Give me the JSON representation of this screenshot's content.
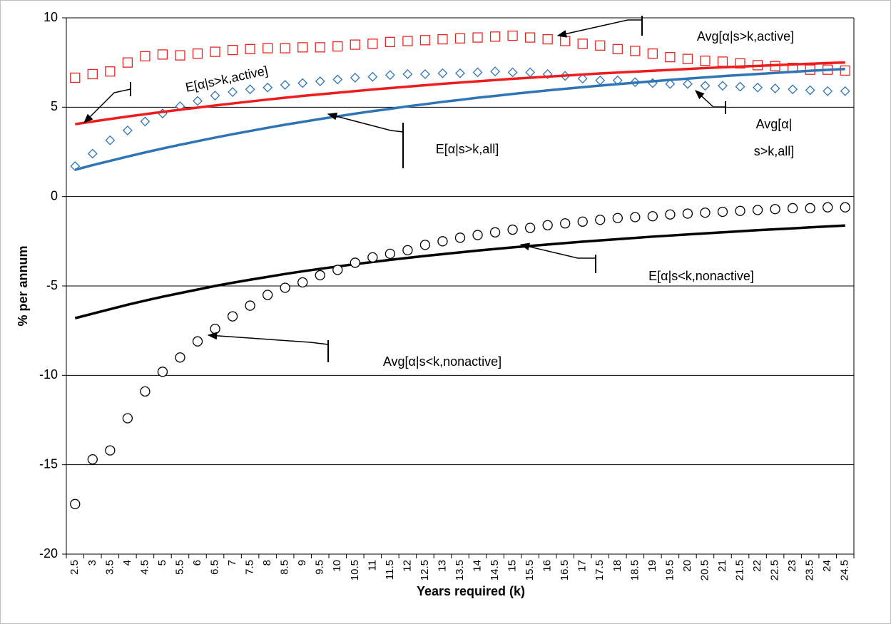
{
  "chart_data": {
    "type": "line",
    "y_label": "% per annum",
    "x_label": "Years required (k)",
    "categories": [
      "2.5",
      "3",
      "3.5",
      "4",
      "4.5",
      "5",
      "5.5",
      "6",
      "6.5",
      "7",
      "7.5",
      "8",
      "8.5",
      "9",
      "9.5",
      "10",
      "10.5",
      "11",
      "11.5",
      "12",
      "12.5",
      "13",
      "13.5",
      "14",
      "14.5",
      "15",
      "15.5",
      "16",
      "16.5",
      "17",
      "17.5",
      "18",
      "18.5",
      "19",
      "19.5",
      "20",
      "20.5",
      "21",
      "21.5",
      "22",
      "22.5",
      "23",
      "23.5",
      "24",
      "24.5"
    ],
    "ylim": [
      -20,
      10
    ],
    "yticks": [
      -20,
      -15,
      -10,
      -5,
      0,
      5,
      10
    ],
    "grid": true,
    "series": [
      {
        "style": "diamond",
        "color": "#2e75b6",
        "values": [
          1.7,
          2.4,
          3.15,
          3.7,
          4.2,
          4.65,
          5.05,
          5.35,
          5.65,
          5.85,
          6.0,
          6.1,
          6.25,
          6.35,
          6.45,
          6.55,
          6.65,
          6.7,
          6.8,
          6.85,
          6.85,
          6.9,
          6.9,
          6.95,
          7.0,
          6.95,
          6.95,
          6.85,
          6.75,
          6.6,
          6.5,
          6.5,
          6.4,
          6.35,
          6.3,
          6.3,
          6.2,
          6.2,
          6.15,
          6.1,
          6.05,
          6.0,
          5.95,
          5.9,
          5.9
        ]
      },
      {
        "style": "square",
        "color": "#e8251f",
        "values": [
          6.65,
          6.85,
          7.0,
          7.5,
          7.85,
          7.95,
          7.9,
          8.0,
          8.1,
          8.2,
          8.25,
          8.3,
          8.3,
          8.35,
          8.35,
          8.4,
          8.5,
          8.55,
          8.65,
          8.7,
          8.75,
          8.8,
          8.85,
          8.9,
          8.95,
          9.0,
          8.9,
          8.8,
          8.7,
          8.55,
          8.45,
          8.25,
          8.15,
          8.0,
          7.8,
          7.7,
          7.6,
          7.55,
          7.45,
          7.35,
          7.3,
          7.2,
          7.1,
          7.1,
          7.05
        ]
      },
      {
        "style": "line",
        "color": "#2e75b6",
        "values": [
          1.5,
          1.76,
          2.0,
          2.24,
          2.47,
          2.69,
          2.9,
          3.1,
          3.3,
          3.49,
          3.67,
          3.85,
          4.02,
          4.18,
          4.34,
          4.49,
          4.64,
          4.78,
          4.91,
          5.05,
          5.17,
          5.3,
          5.41,
          5.53,
          5.63,
          5.74,
          5.84,
          5.94,
          6.03,
          6.12,
          6.21,
          6.29,
          6.37,
          6.45,
          6.53,
          6.6,
          6.67,
          6.74,
          6.8,
          6.86,
          6.92,
          6.98,
          7.04,
          7.09,
          7.14
        ]
      },
      {
        "style": "line",
        "color": "#ee1c1c",
        "values": [
          4.05,
          4.2,
          4.34,
          4.48,
          4.61,
          4.74,
          4.86,
          4.98,
          5.1,
          5.21,
          5.32,
          5.43,
          5.53,
          5.63,
          5.72,
          5.81,
          5.9,
          5.99,
          6.07,
          6.15,
          6.23,
          6.31,
          6.38,
          6.45,
          6.52,
          6.59,
          6.65,
          6.71,
          6.77,
          6.83,
          6.89,
          6.94,
          6.99,
          7.04,
          7.09,
          7.14,
          7.19,
          7.23,
          7.27,
          7.31,
          7.35,
          7.39,
          7.43,
          7.47,
          7.5
        ]
      },
      {
        "style": "line",
        "color": "#000000",
        "values": [
          -6.8,
          -6.55,
          -6.3,
          -6.05,
          -5.82,
          -5.6,
          -5.4,
          -5.2,
          -5.0,
          -4.82,
          -4.65,
          -4.49,
          -4.33,
          -4.18,
          -4.04,
          -3.91,
          -3.78,
          -3.66,
          -3.54,
          -3.43,
          -3.32,
          -3.22,
          -3.12,
          -3.02,
          -2.93,
          -2.84,
          -2.76,
          -2.68,
          -2.6,
          -2.52,
          -2.45,
          -2.38,
          -2.31,
          -2.24,
          -2.18,
          -2.12,
          -2.06,
          -2.0,
          -1.94,
          -1.88,
          -1.83,
          -1.78,
          -1.72,
          -1.67,
          -1.62
        ]
      },
      {
        "style": "circle",
        "color": "#000000",
        "values": [
          -17.2,
          -14.7,
          -14.2,
          -12.4,
          -10.9,
          -9.8,
          -9.0,
          -8.1,
          -7.4,
          -6.7,
          -6.1,
          -5.5,
          -5.1,
          -4.8,
          -4.4,
          -4.1,
          -3.7,
          -3.4,
          -3.2,
          -3.0,
          -2.7,
          -2.5,
          -2.3,
          -2.15,
          -2.0,
          -1.85,
          -1.75,
          -1.6,
          -1.5,
          -1.4,
          -1.3,
          -1.2,
          -1.15,
          -1.1,
          -1.0,
          -0.95,
          -0.9,
          -0.85,
          -0.8,
          -0.75,
          -0.7,
          -0.65,
          -0.65,
          -0.6,
          -0.6
        ]
      }
    ],
    "annotations": [
      {
        "lines": [
          "Avg[α|s>k,active]"
        ]
      },
      {
        "lines": [
          "E[α|s>k,active]"
        ]
      },
      {
        "lines": [
          "E[α|s>k,all]"
        ]
      },
      {
        "lines": [
          "Avg[α|",
          "s>k,all]"
        ]
      },
      {
        "lines": [
          "E[α|s<k,nonactive]"
        ]
      },
      {
        "lines": [
          "Avg[α|s<k,nonactive]"
        ]
      }
    ]
  }
}
